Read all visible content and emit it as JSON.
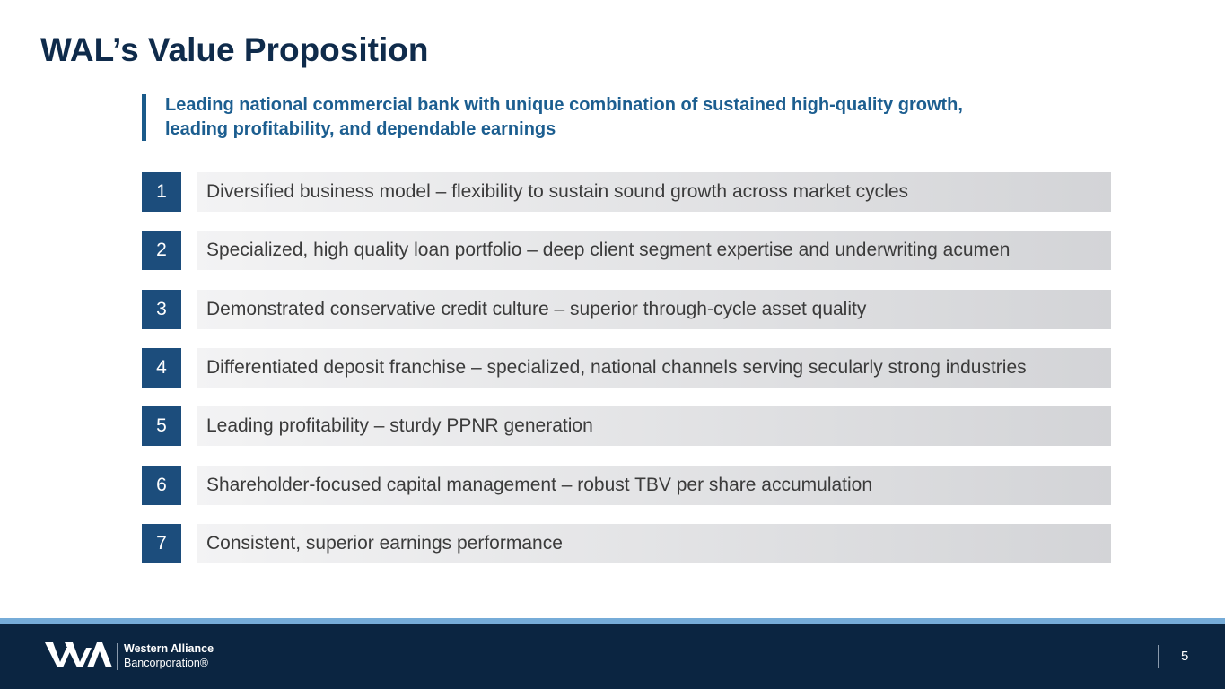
{
  "header": {
    "title": "WAL’s Value Proposition"
  },
  "subtitle": {
    "lines": [
      "Leading national commercial bank with unique combination of sustained high-quality growth,",
      "leading profitability, and dependable earnings"
    ]
  },
  "items": [
    {
      "number": "1",
      "text": "Diversified business model – flexibility to sustain sound growth across market cycles"
    },
    {
      "number": "2",
      "text": "Specialized, high quality loan portfolio – deep client segment expertise and underwriting acumen"
    },
    {
      "number": "3",
      "text": "Demonstrated conservative credit culture – superior through-cycle asset quality"
    },
    {
      "number": "4",
      "text": "Differentiated deposit franchise – specialized, national channels serving secularly strong industries"
    },
    {
      "number": "5",
      "text": "Leading profitability – sturdy PPNR generation"
    },
    {
      "number": "6",
      "text": "Shareholder-focused capital management – robust TBV per share accumulation"
    },
    {
      "number": "7",
      "text": "Consistent, superior earnings performance"
    }
  ],
  "footer": {
    "logo_lines": [
      "Western Alliance",
      "Bancorporation®"
    ],
    "page_number": "5"
  }
}
